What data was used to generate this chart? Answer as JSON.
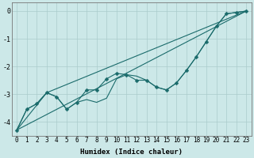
{
  "xlabel": "Humidex (Indice chaleur)",
  "background_color": "#cce8e8",
  "grid_color": "#aacccc",
  "line_color": "#1a6b6b",
  "xlim": [
    -0.5,
    23.5
  ],
  "ylim": [
    -4.5,
    0.3
  ],
  "xticks": [
    0,
    1,
    2,
    3,
    4,
    5,
    6,
    7,
    8,
    9,
    10,
    11,
    12,
    13,
    14,
    15,
    16,
    17,
    18,
    19,
    20,
    21,
    22,
    23
  ],
  "yticks": [
    0,
    -1,
    -2,
    -3,
    -4
  ],
  "series_main": [
    0,
    -4.3,
    1,
    -3.55,
    2,
    -3.35,
    3,
    -2.95,
    4,
    -3.1,
    5,
    -3.55,
    6,
    -3.3,
    7,
    -2.85,
    8,
    -2.85,
    9,
    -2.45,
    10,
    -2.25,
    11,
    -2.3,
    12,
    -2.5,
    13,
    -2.5,
    14,
    -2.75,
    15,
    -2.85,
    16,
    -2.6,
    17,
    -2.15,
    18,
    -1.65,
    19,
    -1.1,
    20,
    -0.55,
    21,
    -0.1,
    22,
    -0.05,
    23,
    0.0
  ],
  "series_lower": [
    0,
    -4.3,
    1,
    -3.55,
    2,
    -3.35,
    3,
    -2.95,
    4,
    -3.1,
    5,
    -3.55,
    6,
    -3.3,
    7,
    -3.2,
    8,
    -3.3,
    9,
    -3.15,
    10,
    -2.45,
    11,
    -2.3,
    12,
    -2.35,
    13,
    -2.5,
    14,
    -2.75,
    15,
    -2.85,
    16,
    -2.6,
    17,
    -2.15,
    18,
    -1.65,
    19,
    -1.1,
    20,
    -0.55,
    21,
    -0.1,
    22,
    -0.05,
    23,
    0.0
  ],
  "series_straight": [
    0,
    -4.3,
    23,
    0.0
  ],
  "series_mid": [
    0,
    -4.3,
    3,
    -2.95,
    23,
    0.0
  ],
  "marker": "D",
  "marker_size": 2.5,
  "linewidth": 0.8,
  "xlabel_fontsize": 6.5,
  "tick_fontsize": 5.5
}
